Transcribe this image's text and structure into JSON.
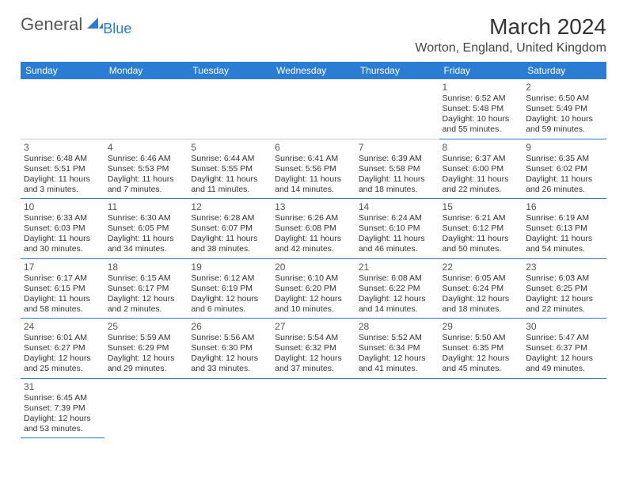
{
  "logo": {
    "part1": "General",
    "part2": "Blue"
  },
  "title": "March 2024",
  "location": "Worton, England, United Kingdom",
  "header_row_color": "#2b7cd3",
  "header_text_color": "#ffffff",
  "cell_border_color": "#2b7cd3",
  "weekdays": [
    "Sunday",
    "Monday",
    "Tuesday",
    "Wednesday",
    "Thursday",
    "Friday",
    "Saturday"
  ],
  "weeks": [
    [
      null,
      null,
      null,
      null,
      null,
      {
        "d": "1",
        "sr": "6:52 AM",
        "ss": "5:48 PM",
        "dl": "10 hours and 55 minutes."
      },
      {
        "d": "2",
        "sr": "6:50 AM",
        "ss": "5:49 PM",
        "dl": "10 hours and 59 minutes."
      }
    ],
    [
      {
        "d": "3",
        "sr": "6:48 AM",
        "ss": "5:51 PM",
        "dl": "11 hours and 3 minutes."
      },
      {
        "d": "4",
        "sr": "6:46 AM",
        "ss": "5:53 PM",
        "dl": "11 hours and 7 minutes."
      },
      {
        "d": "5",
        "sr": "6:44 AM",
        "ss": "5:55 PM",
        "dl": "11 hours and 11 minutes."
      },
      {
        "d": "6",
        "sr": "6:41 AM",
        "ss": "5:56 PM",
        "dl": "11 hours and 14 minutes."
      },
      {
        "d": "7",
        "sr": "6:39 AM",
        "ss": "5:58 PM",
        "dl": "11 hours and 18 minutes."
      },
      {
        "d": "8",
        "sr": "6:37 AM",
        "ss": "6:00 PM",
        "dl": "11 hours and 22 minutes."
      },
      {
        "d": "9",
        "sr": "6:35 AM",
        "ss": "6:02 PM",
        "dl": "11 hours and 26 minutes."
      }
    ],
    [
      {
        "d": "10",
        "sr": "6:33 AM",
        "ss": "6:03 PM",
        "dl": "11 hours and 30 minutes."
      },
      {
        "d": "11",
        "sr": "6:30 AM",
        "ss": "6:05 PM",
        "dl": "11 hours and 34 minutes."
      },
      {
        "d": "12",
        "sr": "6:28 AM",
        "ss": "6:07 PM",
        "dl": "11 hours and 38 minutes."
      },
      {
        "d": "13",
        "sr": "6:26 AM",
        "ss": "6:08 PM",
        "dl": "11 hours and 42 minutes."
      },
      {
        "d": "14",
        "sr": "6:24 AM",
        "ss": "6:10 PM",
        "dl": "11 hours and 46 minutes."
      },
      {
        "d": "15",
        "sr": "6:21 AM",
        "ss": "6:12 PM",
        "dl": "11 hours and 50 minutes."
      },
      {
        "d": "16",
        "sr": "6:19 AM",
        "ss": "6:13 PM",
        "dl": "11 hours and 54 minutes."
      }
    ],
    [
      {
        "d": "17",
        "sr": "6:17 AM",
        "ss": "6:15 PM",
        "dl": "11 hours and 58 minutes."
      },
      {
        "d": "18",
        "sr": "6:15 AM",
        "ss": "6:17 PM",
        "dl": "12 hours and 2 minutes."
      },
      {
        "d": "19",
        "sr": "6:12 AM",
        "ss": "6:19 PM",
        "dl": "12 hours and 6 minutes."
      },
      {
        "d": "20",
        "sr": "6:10 AM",
        "ss": "6:20 PM",
        "dl": "12 hours and 10 minutes."
      },
      {
        "d": "21",
        "sr": "6:08 AM",
        "ss": "6:22 PM",
        "dl": "12 hours and 14 minutes."
      },
      {
        "d": "22",
        "sr": "6:05 AM",
        "ss": "6:24 PM",
        "dl": "12 hours and 18 minutes."
      },
      {
        "d": "23",
        "sr": "6:03 AM",
        "ss": "6:25 PM",
        "dl": "12 hours and 22 minutes."
      }
    ],
    [
      {
        "d": "24",
        "sr": "6:01 AM",
        "ss": "6:27 PM",
        "dl": "12 hours and 25 minutes."
      },
      {
        "d": "25",
        "sr": "5:59 AM",
        "ss": "6:29 PM",
        "dl": "12 hours and 29 minutes."
      },
      {
        "d": "26",
        "sr": "5:56 AM",
        "ss": "6:30 PM",
        "dl": "12 hours and 33 minutes."
      },
      {
        "d": "27",
        "sr": "5:54 AM",
        "ss": "6:32 PM",
        "dl": "12 hours and 37 minutes."
      },
      {
        "d": "28",
        "sr": "5:52 AM",
        "ss": "6:34 PM",
        "dl": "12 hours and 41 minutes."
      },
      {
        "d": "29",
        "sr": "5:50 AM",
        "ss": "6:35 PM",
        "dl": "12 hours and 45 minutes."
      },
      {
        "d": "30",
        "sr": "5:47 AM",
        "ss": "6:37 PM",
        "dl": "12 hours and 49 minutes."
      }
    ],
    [
      {
        "d": "31",
        "sr": "6:45 AM",
        "ss": "7:39 PM",
        "dl": "12 hours and 53 minutes."
      },
      null,
      null,
      null,
      null,
      null,
      null
    ]
  ],
  "labels": {
    "sunrise": "Sunrise: ",
    "sunset": "Sunset: ",
    "daylight": "Daylight: "
  }
}
